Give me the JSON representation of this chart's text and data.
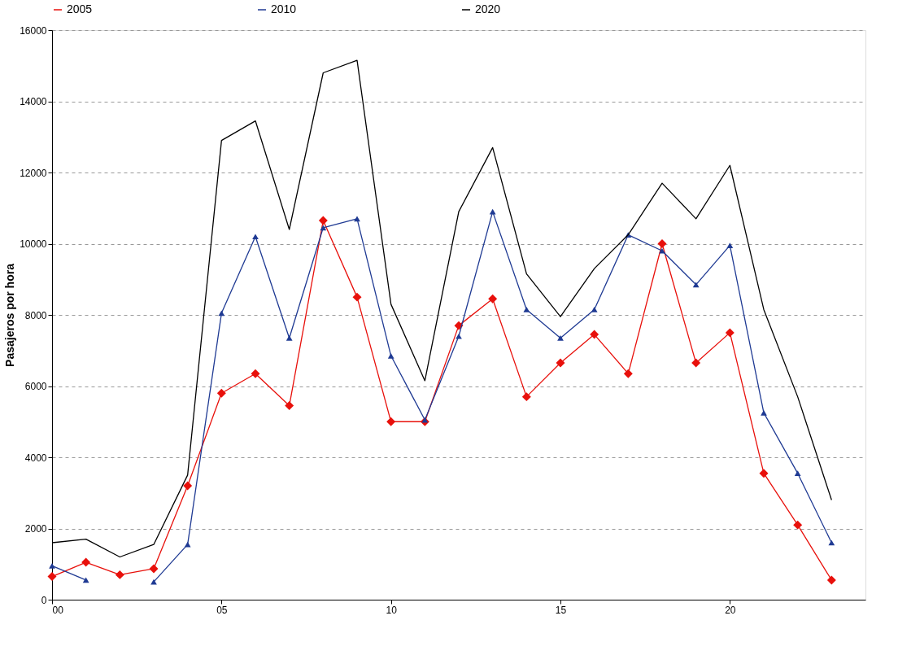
{
  "chart_data": {
    "type": "line",
    "ylabel": "Pasajeros por hora",
    "x": [
      0,
      1,
      2,
      3,
      4,
      5,
      6,
      7,
      8,
      9,
      10,
      11,
      12,
      13,
      14,
      15,
      16,
      17,
      18,
      19,
      20,
      21,
      22,
      23
    ],
    "xlim": [
      0,
      24
    ],
    "xticks": [
      {
        "value": 0,
        "label": "00"
      },
      {
        "value": 5,
        "label": "05"
      },
      {
        "value": 10,
        "label": "10"
      },
      {
        "value": 15,
        "label": "15"
      },
      {
        "value": 20,
        "label": "20"
      }
    ],
    "ylim": [
      0,
      16000
    ],
    "yticks": [
      0,
      2000,
      4000,
      6000,
      8000,
      10000,
      12000,
      14000,
      16000
    ],
    "grid": "y",
    "legend": "top",
    "series": [
      {
        "name": "2005",
        "color": "#e8100b",
        "marker": "diamond",
        "values": [
          650,
          1050,
          700,
          870,
          3200,
          5800,
          6350,
          5450,
          10650,
          8500,
          5000,
          5000,
          7700,
          8450,
          5700,
          6650,
          7450,
          6350,
          10000,
          6650,
          7500,
          3550,
          2100,
          550
        ]
      },
      {
        "name": "2010",
        "color": "#1f3a93",
        "marker": "triangle",
        "values": [
          950,
          550,
          null,
          500,
          1550,
          8050,
          10200,
          7350,
          10450,
          10700,
          6850,
          5050,
          7400,
          10900,
          8150,
          7350,
          8150,
          10250,
          9800,
          8850,
          9950,
          5250,
          3550,
          1600
        ]
      },
      {
        "name": "2020",
        "color": "#000000",
        "marker": "none",
        "values": [
          1600,
          1700,
          1200,
          1550,
          3500,
          12900,
          13450,
          10400,
          14800,
          15150,
          8300,
          6150,
          10900,
          12700,
          9150,
          7950,
          9300,
          10250,
          11700,
          10700,
          12200,
          8150,
          5700,
          2800
        ]
      }
    ]
  }
}
